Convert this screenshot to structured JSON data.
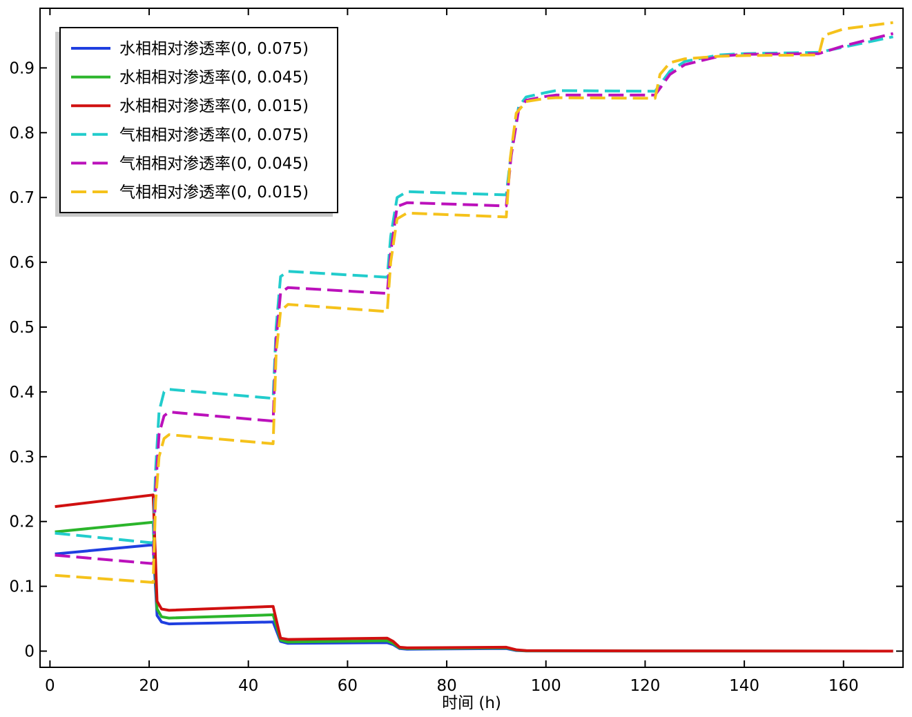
{
  "chart_data": {
    "type": "line",
    "title": "",
    "xlabel": "时间 (h)",
    "ylabel": "",
    "xlim": [
      -2,
      172
    ],
    "ylim": [
      -0.025,
      0.992
    ],
    "xticks": [
      0,
      20,
      40,
      60,
      80,
      100,
      120,
      140,
      160
    ],
    "yticks": [
      0,
      0.1,
      0.2,
      0.3,
      0.4,
      0.5,
      0.6,
      0.7,
      0.8,
      0.9
    ],
    "ytick_labels": [
      "0",
      "0.1",
      "0.2",
      "0.3",
      "0.4",
      "0.5",
      "0.6",
      "0.7",
      "0.8",
      "0.9"
    ],
    "grid": false,
    "legend_position": "top-left",
    "series": [
      {
        "name": "水相相对渗透率(0, 0.075)",
        "color": "#1f3fe0",
        "dash": "solid",
        "points": [
          [
            1,
            0.15
          ],
          [
            20.8,
            0.164
          ],
          [
            21.6,
            0.055
          ],
          [
            22.5,
            0.045
          ],
          [
            24,
            0.042
          ],
          [
            45,
            0.045
          ],
          [
            46.5,
            0.015
          ],
          [
            48,
            0.012
          ],
          [
            68,
            0.013
          ],
          [
            69.2,
            0.01
          ],
          [
            70.5,
            0.004
          ],
          [
            72,
            0.003
          ],
          [
            92,
            0.004
          ],
          [
            94,
            0.001
          ],
          [
            96,
            0.0003
          ],
          [
            120,
            0.0001
          ],
          [
            170,
            0.0
          ]
        ]
      },
      {
        "name": "水相相对渗透率(0, 0.045)",
        "color": "#2bb52b",
        "dash": "solid",
        "points": [
          [
            1,
            0.184
          ],
          [
            20.8,
            0.199
          ],
          [
            21.6,
            0.065
          ],
          [
            22.5,
            0.053
          ],
          [
            24,
            0.051
          ],
          [
            45,
            0.056
          ],
          [
            46.5,
            0.017
          ],
          [
            48,
            0.014
          ],
          [
            68,
            0.016
          ],
          [
            69.2,
            0.012
          ],
          [
            70.5,
            0.005
          ],
          [
            72,
            0.004
          ],
          [
            92,
            0.005
          ],
          [
            94,
            0.0015
          ],
          [
            96,
            0.0005
          ],
          [
            120,
            0.0002
          ],
          [
            170,
            0.0
          ]
        ]
      },
      {
        "name": "水相相对渗透率(0, 0.015)",
        "color": "#d01010",
        "dash": "solid",
        "points": [
          [
            1,
            0.223
          ],
          [
            20.8,
            0.241
          ],
          [
            21.6,
            0.077
          ],
          [
            22.5,
            0.065
          ],
          [
            24,
            0.063
          ],
          [
            45,
            0.069
          ],
          [
            46.5,
            0.02
          ],
          [
            48,
            0.018
          ],
          [
            68,
            0.02
          ],
          [
            69.2,
            0.015
          ],
          [
            70.5,
            0.006
          ],
          [
            72,
            0.005
          ],
          [
            92,
            0.006
          ],
          [
            94,
            0.002
          ],
          [
            96,
            0.0008
          ],
          [
            120,
            0.0003
          ],
          [
            170,
            0.0
          ]
        ]
      },
      {
        "name": "气相相对渗透率(0, 0.075)",
        "color": "#22cccc",
        "dash": "dash",
        "points": [
          [
            1,
            0.182
          ],
          [
            20.8,
            0.167
          ],
          [
            21.3,
            0.28
          ],
          [
            22,
            0.37
          ],
          [
            23,
            0.4
          ],
          [
            24,
            0.404
          ],
          [
            45,
            0.39
          ],
          [
            45.6,
            0.5
          ],
          [
            46.5,
            0.578
          ],
          [
            48,
            0.586
          ],
          [
            68,
            0.577
          ],
          [
            68.7,
            0.64
          ],
          [
            70,
            0.7
          ],
          [
            72,
            0.709
          ],
          [
            92,
            0.704
          ],
          [
            93,
            0.77
          ],
          [
            94.5,
            0.84
          ],
          [
            96,
            0.855
          ],
          [
            100,
            0.862
          ],
          [
            102,
            0.865
          ],
          [
            122,
            0.864
          ],
          [
            125,
            0.895
          ],
          [
            128,
            0.91
          ],
          [
            135,
            0.92
          ],
          [
            140,
            0.922
          ],
          [
            155,
            0.924
          ],
          [
            160,
            0.932
          ],
          [
            170,
            0.948
          ]
        ]
      },
      {
        "name": "气相相对渗透率(0, 0.045)",
        "color": "#bb11bb",
        "dash": "dash",
        "points": [
          [
            1,
            0.148
          ],
          [
            20.8,
            0.135
          ],
          [
            21.3,
            0.25
          ],
          [
            22,
            0.335
          ],
          [
            23,
            0.363
          ],
          [
            24,
            0.369
          ],
          [
            45,
            0.355
          ],
          [
            45.6,
            0.48
          ],
          [
            46.5,
            0.553
          ],
          [
            48,
            0.561
          ],
          [
            68,
            0.552
          ],
          [
            68.7,
            0.615
          ],
          [
            70,
            0.686
          ],
          [
            72,
            0.692
          ],
          [
            92,
            0.687
          ],
          [
            93,
            0.765
          ],
          [
            94.5,
            0.835
          ],
          [
            96,
            0.85
          ],
          [
            100,
            0.856
          ],
          [
            102,
            0.858
          ],
          [
            122,
            0.858
          ],
          [
            125,
            0.89
          ],
          [
            128,
            0.905
          ],
          [
            135,
            0.918
          ],
          [
            140,
            0.921
          ],
          [
            155,
            0.922
          ],
          [
            160,
            0.934
          ],
          [
            170,
            0.953
          ]
        ]
      },
      {
        "name": "气相相对渗透率(0, 0.015)",
        "color": "#f5c21b",
        "dash": "dash",
        "points": [
          [
            1,
            0.117
          ],
          [
            20.8,
            0.106
          ],
          [
            21.3,
            0.23
          ],
          [
            22,
            0.3
          ],
          [
            23,
            0.328
          ],
          [
            24,
            0.334
          ],
          [
            45,
            0.32
          ],
          [
            45.6,
            0.46
          ],
          [
            46.5,
            0.525
          ],
          [
            48,
            0.535
          ],
          [
            68,
            0.524
          ],
          [
            68.7,
            0.6
          ],
          [
            70,
            0.667
          ],
          [
            72,
            0.676
          ],
          [
            92,
            0.67
          ],
          [
            92.8,
            0.76
          ],
          [
            94,
            0.83
          ],
          [
            96,
            0.848
          ],
          [
            100,
            0.853
          ],
          [
            102,
            0.854
          ],
          [
            122,
            0.853
          ],
          [
            123,
            0.89
          ],
          [
            125,
            0.908
          ],
          [
            128,
            0.914
          ],
          [
            135,
            0.918
          ],
          [
            140,
            0.919
          ],
          [
            155,
            0.92
          ],
          [
            156,
            0.95
          ],
          [
            160,
            0.96
          ],
          [
            170,
            0.97
          ]
        ]
      }
    ]
  }
}
